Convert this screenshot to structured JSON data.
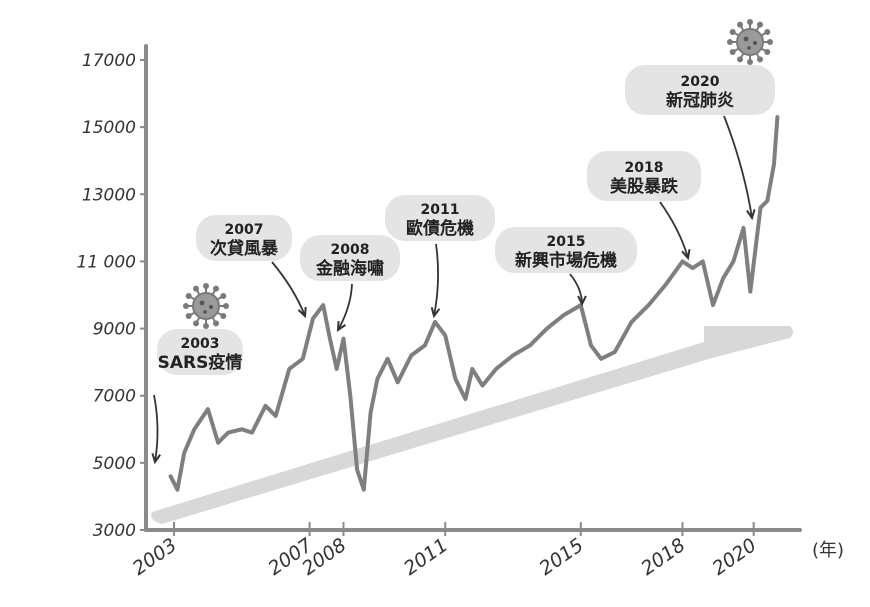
{
  "chart_data": {
    "type": "line",
    "title": "",
    "xlabel": "(年)",
    "ylabel": "",
    "xlim": [
      2003,
      2021
    ],
    "ylim": [
      3000,
      17000
    ],
    "yticks": [
      "17000",
      "15000",
      "13000",
      "11 000",
      "9000",
      "7000",
      "5000",
      "3000"
    ],
    "ytick_values": [
      17000,
      15000,
      13000,
      11000,
      9000,
      7000,
      5000,
      3000
    ],
    "xticks": [
      "2003",
      "2007",
      "2008",
      "2011",
      "2015",
      "2018",
      "2020"
    ],
    "xtick_values": [
      2003,
      2007,
      2008,
      2011,
      2015,
      2018,
      2020.1
    ],
    "grid": false,
    "series": [
      {
        "name": "",
        "x": [
          2002.9,
          2003.1,
          2003.3,
          2003.6,
          2004.0,
          2004.3,
          2004.6,
          2005.0,
          2005.3,
          2005.7,
          2006.0,
          2006.4,
          2006.8,
          2007.1,
          2007.4,
          2007.6,
          2007.8,
          2008.0,
          2008.2,
          2008.4,
          2008.6,
          2008.8,
          2009.0,
          2009.3,
          2009.6,
          2010.0,
          2010.4,
          2010.7,
          2011.0,
          2011.3,
          2011.6,
          2011.8,
          2012.1,
          2012.5,
          2013.0,
          2013.5,
          2014.0,
          2014.5,
          2015.0,
          2015.3,
          2015.6,
          2016.0,
          2016.5,
          2017.0,
          2017.5,
          2018.0,
          2018.3,
          2018.6,
          2018.9,
          2019.2,
          2019.5,
          2019.8,
          2020.0,
          2020.3,
          2020.5,
          2020.7,
          2020.8
        ],
        "y": [
          4600,
          4200,
          5300,
          6000,
          6600,
          5600,
          5900,
          6000,
          5900,
          6700,
          6400,
          7800,
          8100,
          9300,
          9700,
          8700,
          7800,
          8700,
          7000,
          4800,
          4200,
          6500,
          7500,
          8100,
          7400,
          8200,
          8500,
          9200,
          8800,
          7500,
          6900,
          7800,
          7300,
          7800,
          8200,
          8500,
          9000,
          9400,
          9700,
          8500,
          8100,
          8300,
          9200,
          9700,
          10300,
          11000,
          10800,
          11000,
          9700,
          10500,
          11000,
          12000,
          10100,
          12600,
          12800,
          13900,
          15300
        ]
      }
    ],
    "annotations": [
      {
        "year": "2003",
        "text": "SARS疫情",
        "virus": true
      },
      {
        "year": "2007",
        "text": "次貸風暴",
        "virus": false
      },
      {
        "year": "2008",
        "text": "金融海嘯",
        "virus": false
      },
      {
        "year": "2011",
        "text": "歐債危機",
        "virus": false
      },
      {
        "year": "2015",
        "text": "新興市場危機",
        "virus": false
      },
      {
        "year": "2018",
        "text": "美股暴跌",
        "virus": false
      },
      {
        "year": "2020",
        "text": "新冠肺炎",
        "virus": true
      }
    ]
  },
  "colors": {
    "line": "#7f7f7f",
    "axis": "#8a8a8a",
    "trend_arrow": "#d8d8d8",
    "bubble": "#e4e4e4",
    "virus": "#7a7a7a"
  }
}
